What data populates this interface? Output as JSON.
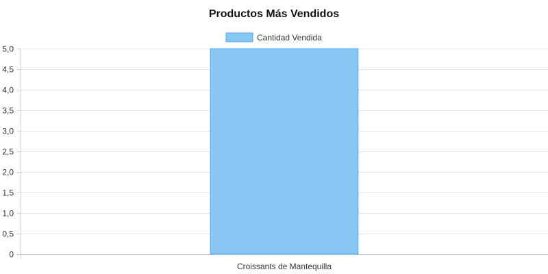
{
  "chart_data": {
    "type": "bar",
    "title": "Productos Más Vendidos",
    "categories": [
      "Croissants de Mantequilla"
    ],
    "series": [
      {
        "name": "Cantidad Vendida",
        "values": [
          5
        ],
        "fill": "#88c6f3",
        "stroke": "#52a7e6"
      }
    ],
    "y_ticks": [
      "0",
      "0,5",
      "1,0",
      "1,5",
      "2,0",
      "2,5",
      "3,0",
      "3,5",
      "4,0",
      "4,5",
      "5,0"
    ],
    "ylim": [
      0,
      5
    ],
    "grid": true,
    "legend_position": "top-center",
    "grid_color": "#e6e6e6"
  }
}
